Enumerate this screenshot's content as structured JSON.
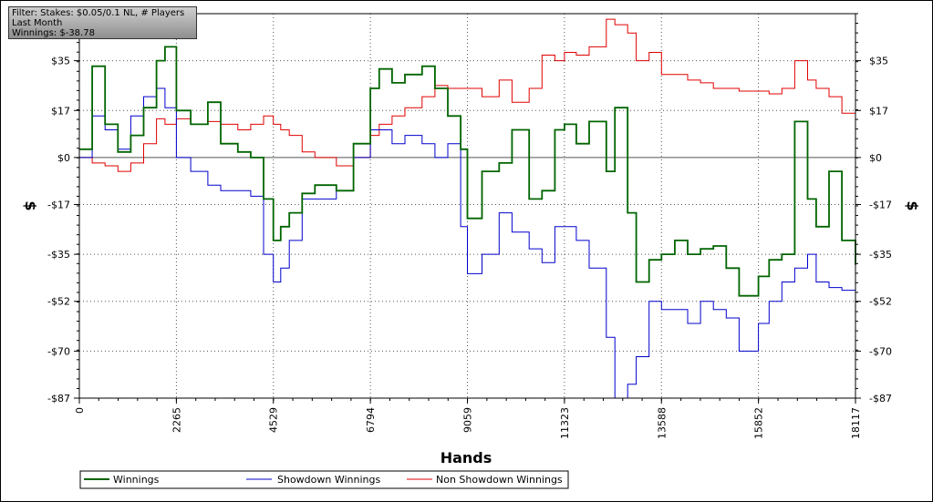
{
  "filter_box": {
    "line1": "Filter: Stakes: $0.05/0.1 NL, # Players",
    "line2": "Last Month",
    "line3": "Winnings: $-38.78"
  },
  "colors": {
    "winnings": "#006400",
    "showdown": "#0000cd",
    "non_showdown": "#e00000",
    "zero_line": "#555555",
    "grid": "#555555"
  },
  "chart_data": {
    "type": "line",
    "xlabel": "Hands",
    "ylabel": "$",
    "xlim": [
      0,
      18117
    ],
    "ylim": [
      -87,
      52
    ],
    "x_ticks": [
      0,
      2265,
      4529,
      6794,
      9059,
      11323,
      13588,
      15852,
      18117
    ],
    "y_ticks": [
      35,
      17,
      0,
      -17,
      -35,
      -52,
      -70,
      -87
    ],
    "y_tick_labels": [
      "$35",
      "$17",
      "$0",
      "-$17",
      "-$35",
      "-$52",
      "-$70",
      "-$87"
    ],
    "grid": true,
    "legend_position": "bottom-left",
    "series": [
      {
        "name": "Winnings",
        "x": [
          0,
          300,
          600,
          900,
          1200,
          1500,
          1800,
          2000,
          2265,
          2600,
          3000,
          3300,
          3700,
          4000,
          4300,
          4529,
          4700,
          4900,
          5200,
          5500,
          6000,
          6400,
          6794,
          7000,
          7300,
          7600,
          8000,
          8300,
          8600,
          8900,
          9059,
          9400,
          9800,
          10100,
          10500,
          10800,
          11100,
          11323,
          11600,
          11900,
          12300,
          12500,
          12800,
          13000,
          13300,
          13588,
          13900,
          14200,
          14500,
          14800,
          15100,
          15400,
          15852,
          16100,
          16400,
          16700,
          17000,
          17200,
          17500,
          17800,
          18117
        ],
        "y": [
          3,
          33,
          12,
          2,
          8,
          18,
          35,
          40,
          17,
          12,
          20,
          5,
          2,
          0,
          -15,
          -30,
          -25,
          -20,
          -13,
          -10,
          -12,
          5,
          25,
          32,
          27,
          30,
          33,
          25,
          15,
          3,
          -22,
          -5,
          -2,
          10,
          -15,
          -12,
          10,
          12,
          5,
          13,
          -5,
          18,
          -20,
          -45,
          -37,
          -35,
          -30,
          -35,
          -33,
          -32,
          -40,
          -50,
          -43,
          -37,
          -35,
          13,
          -15,
          -25,
          -5,
          -30,
          -38.78
        ]
      },
      {
        "name": "Showdown Winnings",
        "x": [
          0,
          300,
          600,
          900,
          1200,
          1500,
          1800,
          2000,
          2265,
          2600,
          3000,
          3300,
          3700,
          4000,
          4300,
          4529,
          4700,
          4900,
          5200,
          5500,
          6000,
          6400,
          6794,
          7000,
          7300,
          7600,
          8000,
          8300,
          8600,
          8900,
          9059,
          9400,
          9800,
          10100,
          10500,
          10800,
          11100,
          11323,
          11600,
          11900,
          12300,
          12500,
          12800,
          13000,
          13300,
          13588,
          13900,
          14200,
          14500,
          14800,
          15100,
          15400,
          15852,
          16100,
          16400,
          16700,
          17000,
          17200,
          17500,
          17800,
          18117
        ],
        "y": [
          0,
          15,
          10,
          3,
          15,
          22,
          25,
          18,
          0,
          -5,
          -10,
          -12,
          -12,
          -14,
          -35,
          -45,
          -40,
          -30,
          -15,
          -15,
          -12,
          0,
          10,
          10,
          5,
          8,
          5,
          0,
          5,
          -25,
          -42,
          -35,
          -20,
          -27,
          -33,
          -38,
          -25,
          -25,
          -30,
          -40,
          -65,
          -87,
          -82,
          -72,
          -52,
          -55,
          -55,
          -60,
          -52,
          -55,
          -58,
          -70,
          -60,
          -52,
          -45,
          -40,
          -35,
          -45,
          -47,
          -48,
          -45
        ]
      },
      {
        "name": "Non Showdown Winnings",
        "x": [
          0,
          300,
          600,
          900,
          1200,
          1500,
          1800,
          2000,
          2265,
          2600,
          3000,
          3300,
          3700,
          4000,
          4300,
          4529,
          4700,
          4900,
          5200,
          5500,
          6000,
          6400,
          6794,
          7000,
          7300,
          7600,
          8000,
          8300,
          8600,
          8900,
          9059,
          9400,
          9800,
          10100,
          10500,
          10800,
          11100,
          11323,
          11600,
          11900,
          12300,
          12500,
          12800,
          13000,
          13300,
          13588,
          13900,
          14200,
          14500,
          14800,
          15100,
          15400,
          15852,
          16100,
          16400,
          16700,
          17000,
          17200,
          17500,
          17800,
          18117
        ],
        "y": [
          0,
          -2,
          -3,
          -5,
          -2,
          5,
          14,
          12,
          14,
          12,
          13,
          12,
          10,
          12,
          15,
          12,
          10,
          8,
          2,
          0,
          -3,
          0,
          8,
          12,
          15,
          18,
          22,
          26,
          25,
          25,
          25,
          22,
          28,
          20,
          25,
          37,
          35,
          38,
          37,
          40,
          50,
          48,
          45,
          35,
          38,
          30,
          30,
          28,
          27,
          25,
          25,
          24,
          24,
          23,
          25,
          35,
          28,
          25,
          22,
          16,
          15
        ]
      }
    ]
  }
}
